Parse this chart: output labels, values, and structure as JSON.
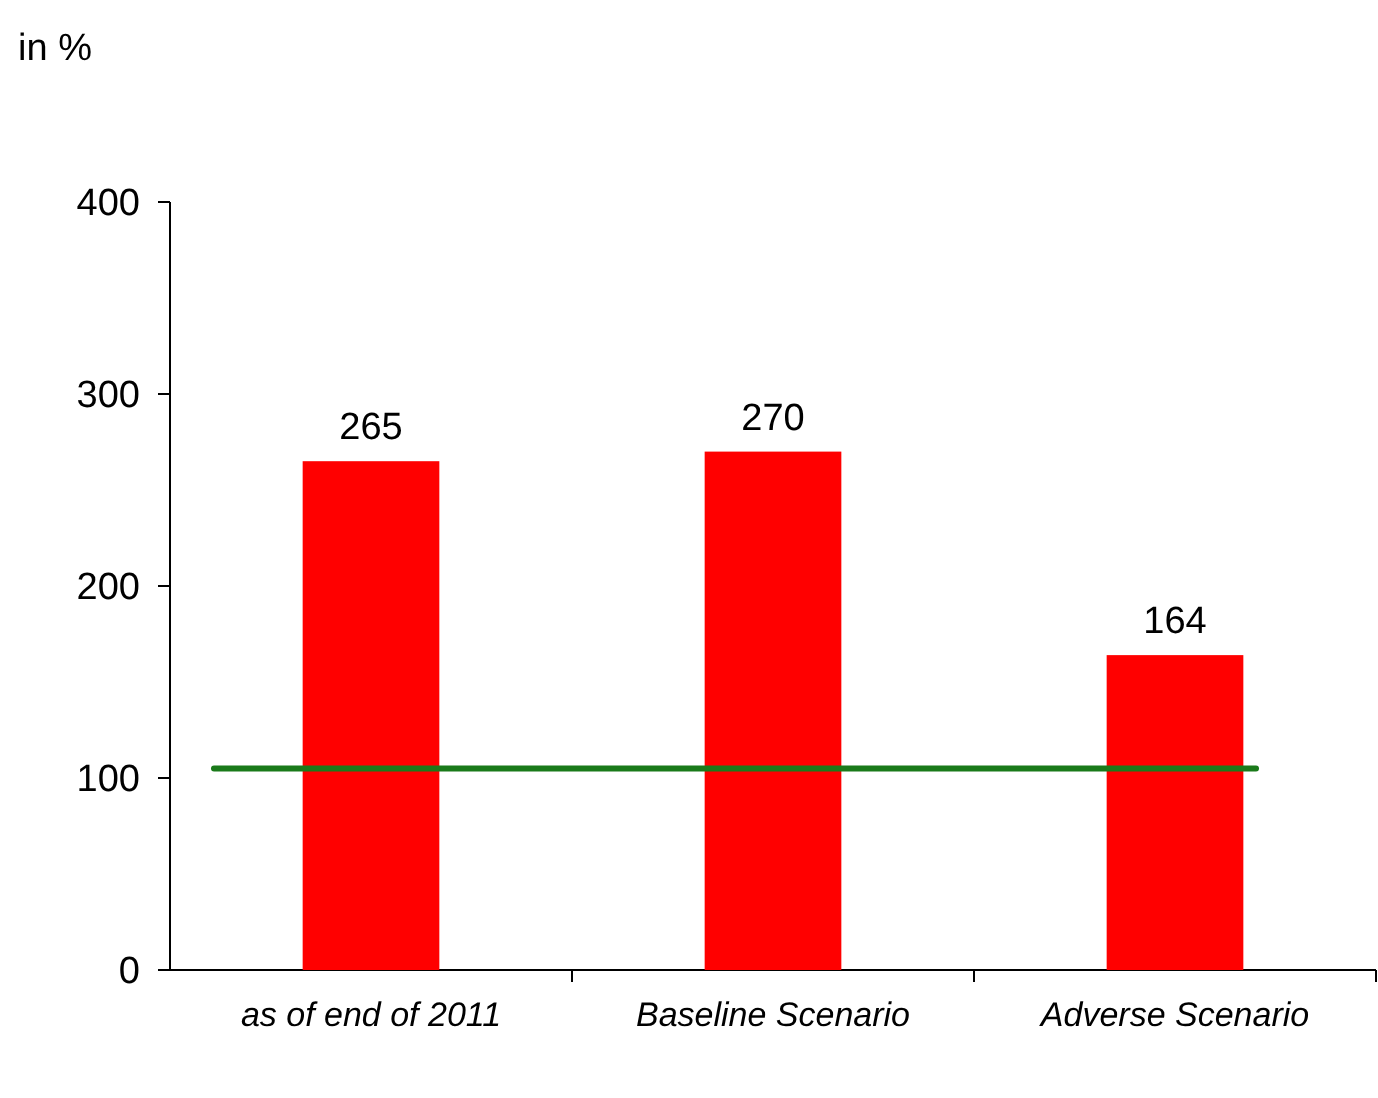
{
  "chart_data": {
    "type": "bar",
    "ylabel": "in %",
    "categories": [
      "as of end of 2011",
      "Baseline Scenario",
      "Adverse Scenario"
    ],
    "values": [
      265,
      270,
      164
    ],
    "color": "#ff0000",
    "data_labels": true,
    "ylim": [
      0,
      400
    ],
    "yticks": [
      0,
      100,
      200,
      300,
      400
    ],
    "ref_lines": [
      {
        "axis": "y",
        "value": 105,
        "color": "#1a7a1a",
        "line_style": "solid"
      }
    ]
  }
}
